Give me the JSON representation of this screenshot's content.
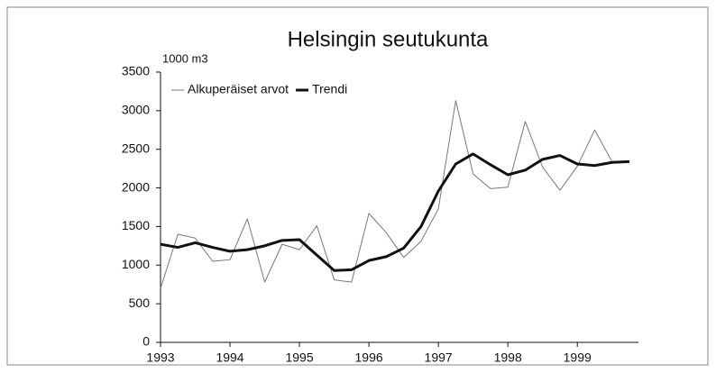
{
  "chart_data": {
    "type": "line",
    "title": "Helsingin seutukunta",
    "y_unit": "1000 m3",
    "x": [
      1993,
      1993.25,
      1993.5,
      1993.75,
      1994,
      1994.25,
      1994.5,
      1994.75,
      1995,
      1995.25,
      1995.5,
      1995.75,
      1996,
      1996.25,
      1996.5,
      1996.75,
      1997,
      1997.25,
      1997.5,
      1997.75,
      1998,
      1998.25,
      1998.5,
      1998.75,
      1999,
      1999.25,
      1999.5,
      1999.75
    ],
    "series": [
      {
        "name": "Alkuperäiset arvot",
        "color": "#777777",
        "width": 1,
        "values": [
          700,
          1400,
          1350,
          1050,
          1070,
          1600,
          780,
          1270,
          1200,
          1510,
          810,
          780,
          1670,
          1420,
          1100,
          1310,
          1730,
          3130,
          2180,
          1990,
          2010,
          2860,
          2270,
          1970,
          2280,
          2750,
          2340,
          2350
        ]
      },
      {
        "name": "Trendi",
        "color": "#111111",
        "width": 3,
        "values": [
          1270,
          1230,
          1290,
          1230,
          1180,
          1200,
          1250,
          1320,
          1330,
          1130,
          930,
          940,
          1060,
          1110,
          1220,
          1500,
          1960,
          2310,
          2440,
          2300,
          2170,
          2230,
          2370,
          2420,
          2310,
          2290,
          2330,
          2340
        ]
      }
    ],
    "xlim": [
      1993,
      1999.88
    ],
    "xticks": [
      1993,
      1994,
      1995,
      1996,
      1997,
      1998,
      1999
    ],
    "ylim": [
      0,
      3500
    ],
    "yticks": [
      0,
      500,
      1000,
      1500,
      2000,
      2500,
      3000,
      3500
    ],
    "grid": false,
    "legend": "top-left"
  }
}
